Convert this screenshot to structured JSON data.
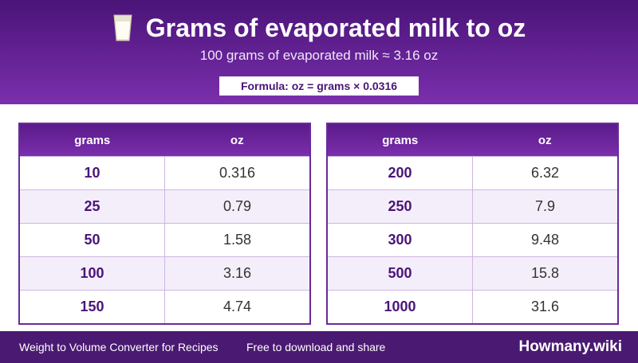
{
  "header": {
    "title": "Grams of evaporated milk to oz",
    "subtitle": "100 grams of evaporated milk ≈ 3.16 oz",
    "formula": "Formula: oz = grams × 0.0316"
  },
  "tables": [
    {
      "columns": [
        "grams",
        "oz"
      ],
      "rows": [
        [
          "10",
          "0.316"
        ],
        [
          "25",
          "0.79"
        ],
        [
          "50",
          "1.58"
        ],
        [
          "100",
          "3.16"
        ],
        [
          "150",
          "4.74"
        ]
      ]
    },
    {
      "columns": [
        "grams",
        "oz"
      ],
      "rows": [
        [
          "200",
          "6.32"
        ],
        [
          "250",
          "7.9"
        ],
        [
          "300",
          "9.48"
        ],
        [
          "500",
          "15.8"
        ],
        [
          "1000",
          "31.6"
        ]
      ]
    }
  ],
  "footer": {
    "left": "Weight to Volume Converter for Recipes",
    "tagline": "Free to download and share",
    "brand": "Howmany.wiki"
  }
}
